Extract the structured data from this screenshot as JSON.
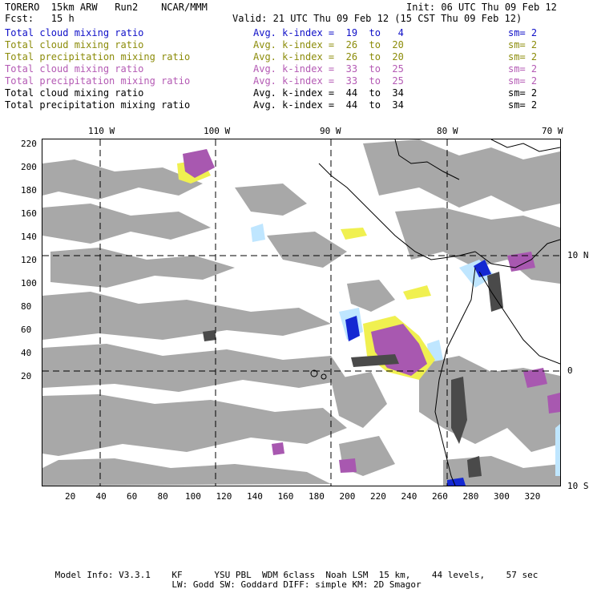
{
  "header": {
    "line1_left": "TORERO  15km ARW   Run2    NCAR/MMM",
    "line1_right": "Init: 06 UTC Thu 09 Feb 12",
    "line2_left": "Fcst:   15 h",
    "line2_right": "Valid: 21 UTC Thu 09 Feb 12 (15 CST Thu 09 Feb 12)"
  },
  "legend": [
    {
      "name": "Total cloud mixing ratio",
      "index": "Avg. k-index =  19  to   4",
      "sm": "sm= 2",
      "color": "#1010c8"
    },
    {
      "name": "Total cloud mixing ratio",
      "index": "Avg. k-index =  26  to  20",
      "sm": "sm= 2",
      "color": "#8c8c0a"
    },
    {
      "name": "Total precipitation mixing ratio",
      "index": "Avg. k-index =  26  to  20",
      "sm": "sm= 2",
      "color": "#8c8c0a"
    },
    {
      "name": "Total cloud mixing ratio",
      "index": "Avg. k-index =  33  to  25",
      "sm": "sm= 2",
      "color": "#b45ab4"
    },
    {
      "name": "Total precipitation mixing ratio",
      "index": "Avg. k-index =  33  to  25",
      "sm": "sm= 2",
      "color": "#b45ab4"
    },
    {
      "name": "Total cloud mixing ratio",
      "index": "Avg. k-index =  44  to  34",
      "sm": "sm= 2",
      "color": "#000000"
    },
    {
      "name": "Total precipitation mixing ratio",
      "index": "Avg. k-index =  44  to  34",
      "sm": "sm= 2",
      "color": "#000000"
    }
  ],
  "longitude_labels": [
    "110 W",
    "100 W",
    "90 W",
    "80 W",
    "70 W"
  ],
  "latitude_labels": [
    "10 N",
    "0",
    "10 S"
  ],
  "grid_x_labels": [
    "20",
    "40",
    "60",
    "80",
    "100",
    "120",
    "140",
    "160",
    "180",
    "200",
    "220",
    "240",
    "260",
    "280",
    "300",
    "320"
  ],
  "grid_y_labels": [
    "220",
    "200",
    "180",
    "160",
    "140",
    "120",
    "100",
    "80",
    "60",
    "40",
    "20"
  ],
  "footer": {
    "line1": "Model Info: V3.3.1    KF      YSU PBL  WDM 6class  Noah LSM  15 km,    44 levels,    57 sec",
    "line2": "LW: Godd SW: Goddard DIFF: simple KM: 2D Smagor"
  },
  "colors": {
    "cloud_gray": "#a8a8a8",
    "light_blue": "#bfe6ff",
    "blue": "#1428d2",
    "yellow": "#f0f050",
    "purple": "#a858b0",
    "dark": "#4a4a4a"
  }
}
